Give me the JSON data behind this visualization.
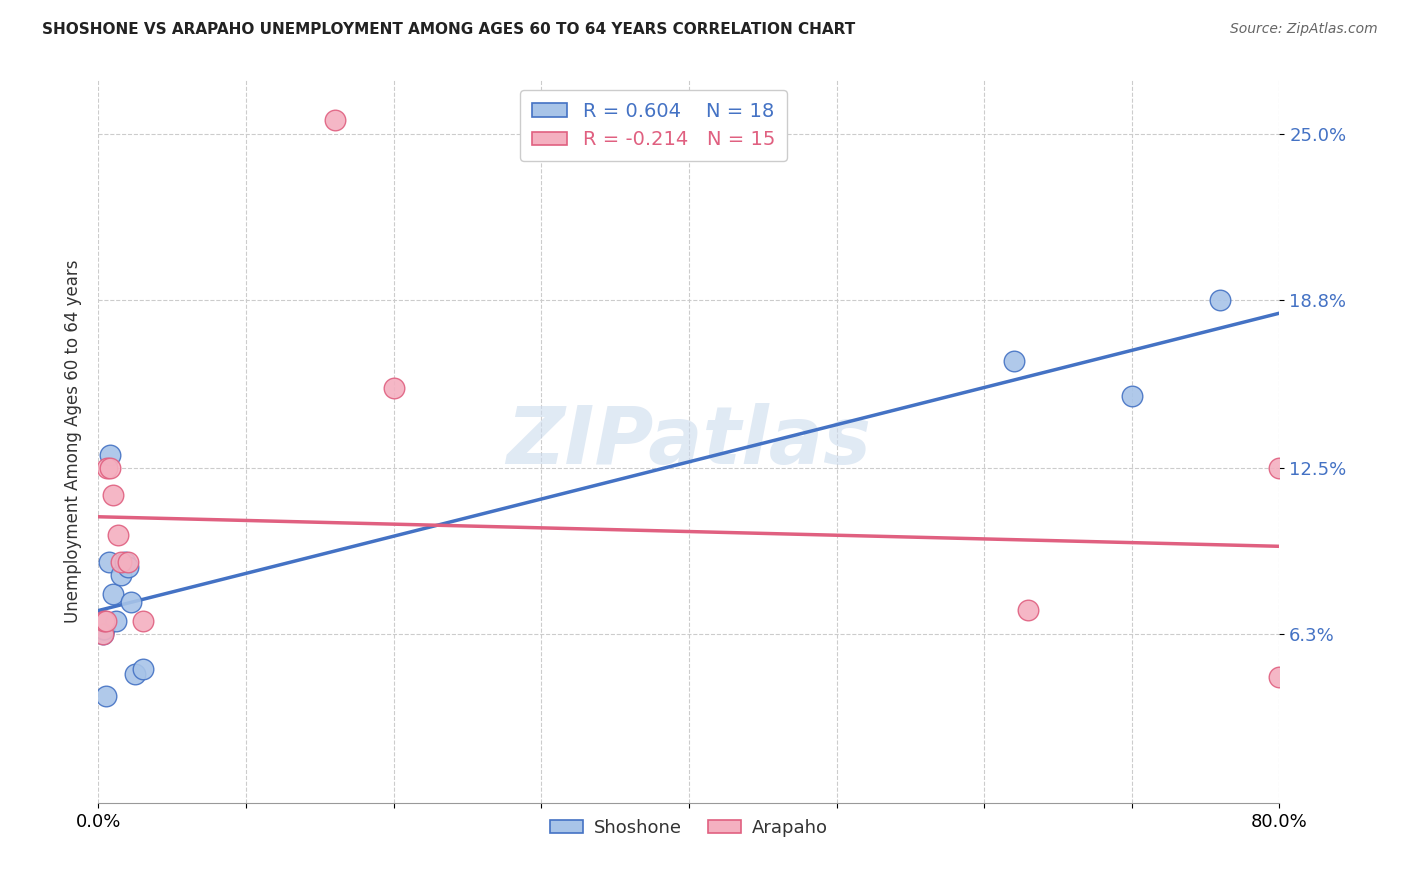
{
  "title": "SHOSHONE VS ARAPAHO UNEMPLOYMENT AMONG AGES 60 TO 64 YEARS CORRELATION CHART",
  "source": "Source: ZipAtlas.com",
  "ylabel": "Unemployment Among Ages 60 to 64 years",
  "xlim": [
    0.0,
    0.8
  ],
  "ylim": [
    0.0,
    0.27
  ],
  "ytick_positions": [
    0.063,
    0.125,
    0.188,
    0.25
  ],
  "ytick_labels": [
    "6.3%",
    "12.5%",
    "18.8%",
    "25.0%"
  ],
  "shoshone_x": [
    0.003,
    0.003,
    0.004,
    0.004,
    0.005,
    0.007,
    0.008,
    0.01,
    0.012,
    0.015,
    0.018,
    0.02,
    0.022,
    0.025,
    0.03,
    0.62,
    0.7,
    0.76
  ],
  "shoshone_y": [
    0.063,
    0.065,
    0.065,
    0.068,
    0.04,
    0.09,
    0.13,
    0.078,
    0.068,
    0.085,
    0.09,
    0.088,
    0.075,
    0.048,
    0.05,
    0.165,
    0.152,
    0.188
  ],
  "arapaho_x": [
    0.003,
    0.004,
    0.005,
    0.006,
    0.008,
    0.01,
    0.013,
    0.015,
    0.02,
    0.03,
    0.16,
    0.2,
    0.63,
    0.8,
    0.8
  ],
  "arapaho_y": [
    0.063,
    0.068,
    0.068,
    0.125,
    0.125,
    0.115,
    0.1,
    0.09,
    0.09,
    0.068,
    0.255,
    0.155,
    0.072,
    0.125,
    0.047
  ],
  "shoshone_color": "#a8c4e8",
  "arapaho_color": "#f4b0c0",
  "shoshone_line_color": "#4472c4",
  "arapaho_line_color": "#e06080",
  "shoshone_R": "0.604",
  "shoshone_N": "18",
  "arapaho_R": "-0.214",
  "arapaho_N": "15",
  "watermark": "ZIPatlas",
  "background_color": "#ffffff",
  "grid_color": "#cccccc"
}
